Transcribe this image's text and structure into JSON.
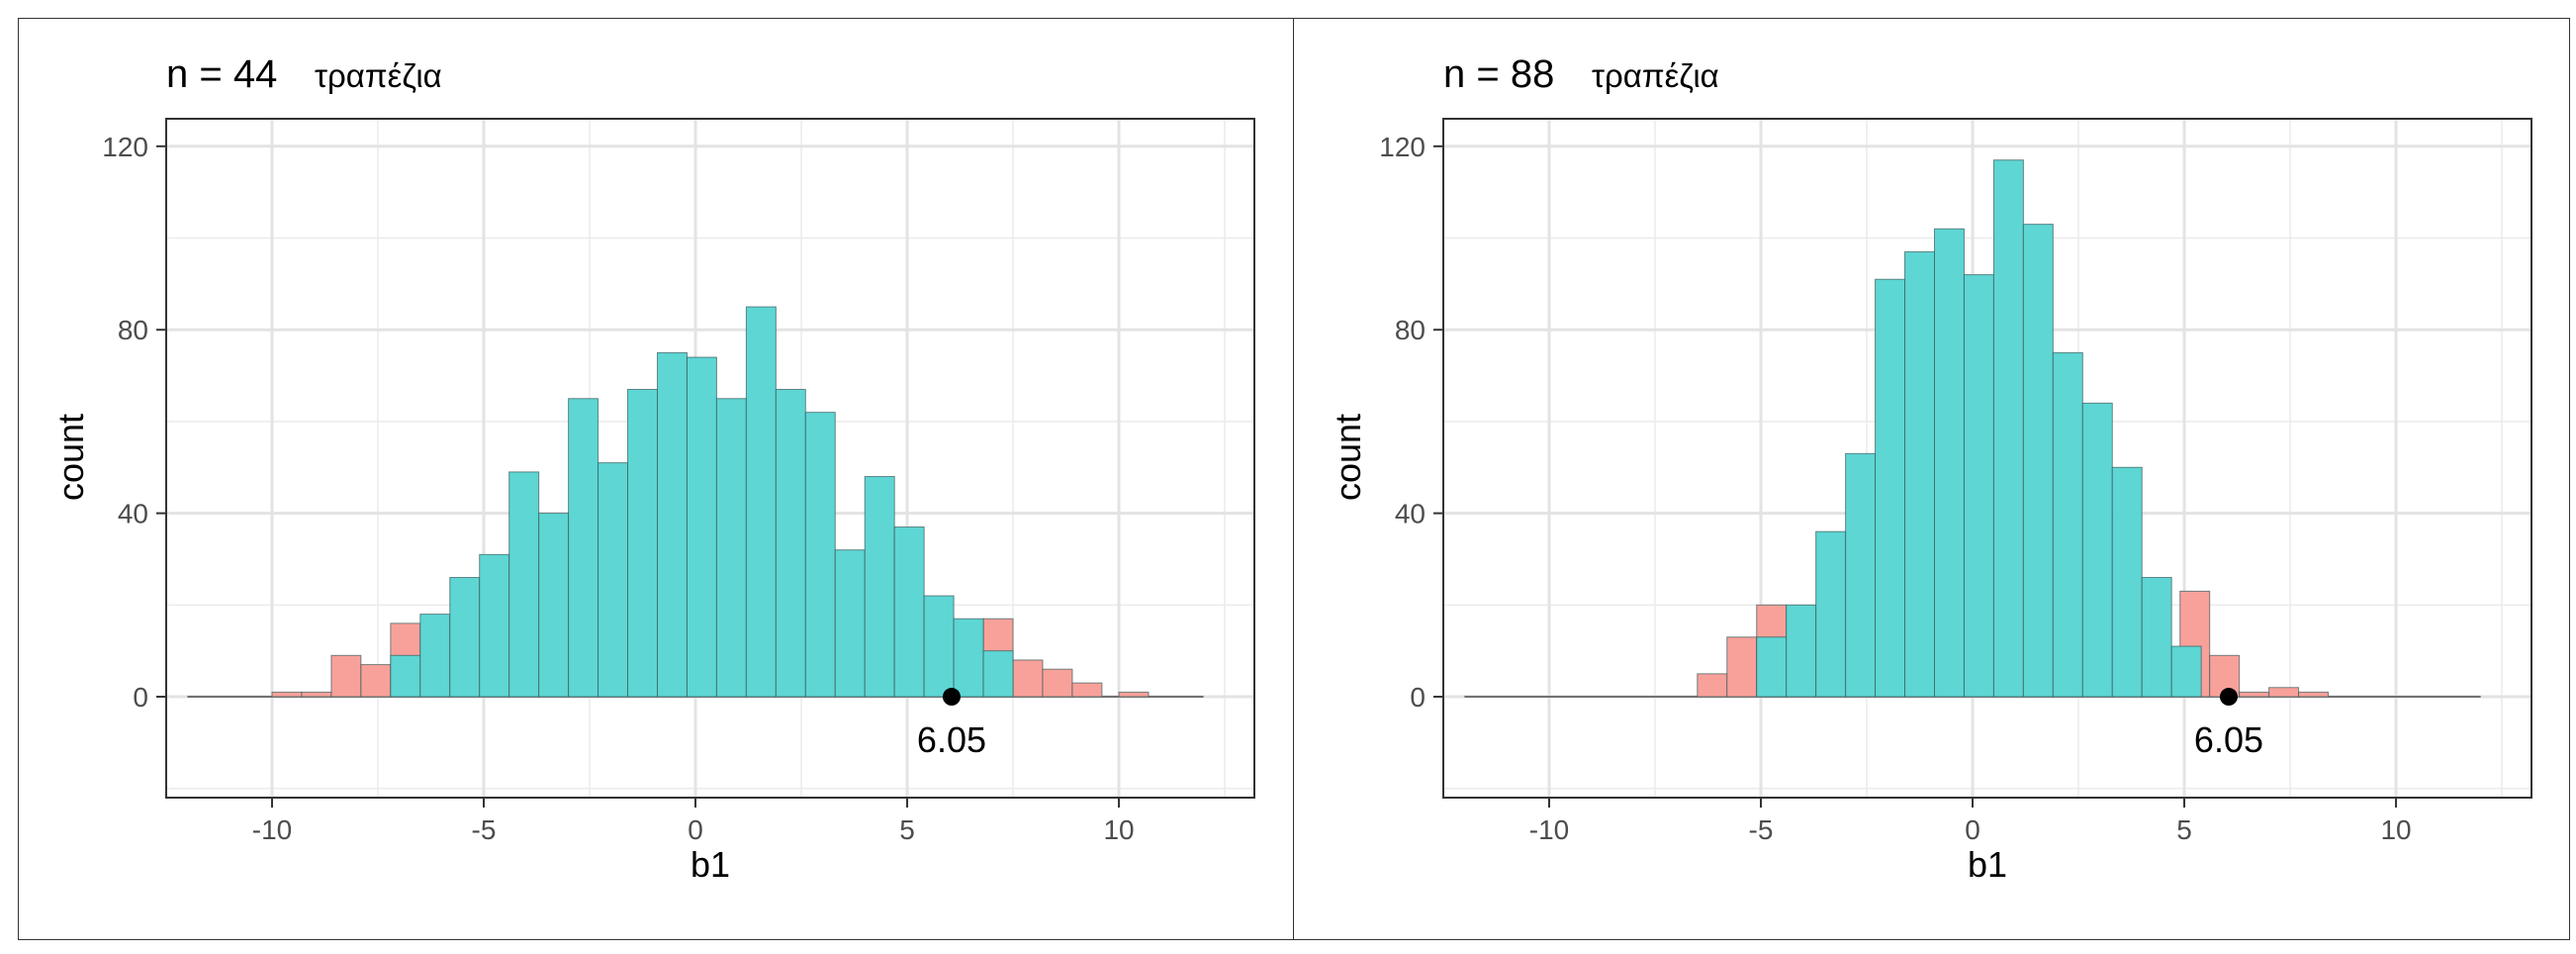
{
  "chart_data": [
    {
      "type": "bar",
      "title": "n = 44",
      "title_suffix": "τραπέζια",
      "xlabel": "b1",
      "ylabel": "count",
      "xlim": [
        -12.5,
        13.2
      ],
      "ylim": [
        -22,
        126
      ],
      "xticks": [
        -10,
        -5,
        0,
        5,
        10
      ],
      "xtick_labels": [
        "-10",
        "-5",
        "0",
        "5",
        "10"
      ],
      "yticks": [
        0,
        40,
        80,
        120
      ],
      "ytick_labels": [
        "0",
        "40",
        "80",
        "120"
      ],
      "baseline_range": [
        -12,
        12
      ],
      "bin_width": 0.7,
      "colors": {
        "middle": "#5dd6d4",
        "tail": "#f8a19a",
        "point": "#000000"
      },
      "series": [
        {
          "name": "tail",
          "bins": [
            {
              "x0": -10.0,
              "count": 1
            },
            {
              "x0": -9.3,
              "count": 1
            },
            {
              "x0": -8.6,
              "count": 9
            },
            {
              "x0": -7.9,
              "count": 7
            },
            {
              "x0": -7.2,
              "count": 16
            },
            {
              "x0": 6.8,
              "count": 17
            },
            {
              "x0": 7.5,
              "count": 8
            },
            {
              "x0": 8.2,
              "count": 6
            },
            {
              "x0": 8.9,
              "count": 3
            },
            {
              "x0": 10.0,
              "count": 1
            }
          ]
        },
        {
          "name": "middle",
          "bins": [
            {
              "x0": -7.2,
              "count": 9
            },
            {
              "x0": -6.5,
              "count": 18
            },
            {
              "x0": -5.8,
              "count": 26
            },
            {
              "x0": -5.1,
              "count": 31
            },
            {
              "x0": -4.4,
              "count": 49
            },
            {
              "x0": -3.7,
              "count": 40
            },
            {
              "x0": -3.0,
              "count": 65
            },
            {
              "x0": -2.3,
              "count": 51
            },
            {
              "x0": -1.6,
              "count": 67
            },
            {
              "x0": -0.9,
              "count": 75
            },
            {
              "x0": -0.2,
              "count": 74
            },
            {
              "x0": 0.5,
              "count": 65
            },
            {
              "x0": 1.2,
              "count": 85
            },
            {
              "x0": 1.9,
              "count": 67
            },
            {
              "x0": 2.6,
              "count": 62
            },
            {
              "x0": 3.3,
              "count": 32
            },
            {
              "x0": 4.0,
              "count": 48
            },
            {
              "x0": 4.7,
              "count": 37
            },
            {
              "x0": 5.4,
              "count": 22
            },
            {
              "x0": 6.1,
              "count": 17
            },
            {
              "x0": 6.8,
              "count": 10
            }
          ]
        }
      ],
      "point": {
        "x": 6.05,
        "y": 0,
        "label": "6.05"
      }
    },
    {
      "type": "bar",
      "title": "n = 88",
      "title_suffix": "τραπέζια",
      "xlabel": "b1",
      "ylabel": "count",
      "xlim": [
        -12.5,
        13.2
      ],
      "ylim": [
        -22,
        126
      ],
      "xticks": [
        -10,
        -5,
        0,
        5,
        10
      ],
      "xtick_labels": [
        "-10",
        "-5",
        "0",
        "5",
        "10"
      ],
      "yticks": [
        0,
        40,
        80,
        120
      ],
      "ytick_labels": [
        "0",
        "40",
        "80",
        "120"
      ],
      "baseline_range": [
        -12,
        12
      ],
      "bin_width": 0.7,
      "colors": {
        "middle": "#5dd6d4",
        "tail": "#f8a19a",
        "point": "#000000"
      },
      "series": [
        {
          "name": "tail",
          "bins": [
            {
              "x0": -6.5,
              "count": 5
            },
            {
              "x0": -5.8,
              "count": 13
            },
            {
              "x0": -5.1,
              "count": 20
            },
            {
              "x0": 4.9,
              "count": 23
            },
            {
              "x0": 5.6,
              "count": 9
            },
            {
              "x0": 6.3,
              "count": 1
            },
            {
              "x0": 7.0,
              "count": 2
            },
            {
              "x0": 7.7,
              "count": 1
            }
          ]
        },
        {
          "name": "middle",
          "bins": [
            {
              "x0": -5.1,
              "count": 13
            },
            {
              "x0": -4.4,
              "count": 20
            },
            {
              "x0": -3.7,
              "count": 36
            },
            {
              "x0": -3.0,
              "count": 53
            },
            {
              "x0": -2.3,
              "count": 91
            },
            {
              "x0": -1.6,
              "count": 97
            },
            {
              "x0": -0.9,
              "count": 102
            },
            {
              "x0": -0.2,
              "count": 92
            },
            {
              "x0": 0.5,
              "count": 117
            },
            {
              "x0": 1.2,
              "count": 103
            },
            {
              "x0": 1.9,
              "count": 75
            },
            {
              "x0": 2.6,
              "count": 64
            },
            {
              "x0": 3.3,
              "count": 50
            },
            {
              "x0": 4.0,
              "count": 26
            },
            {
              "x0": 4.7,
              "count": 11
            }
          ]
        }
      ],
      "point": {
        "x": 6.05,
        "y": 0,
        "label": "6.05"
      }
    }
  ]
}
